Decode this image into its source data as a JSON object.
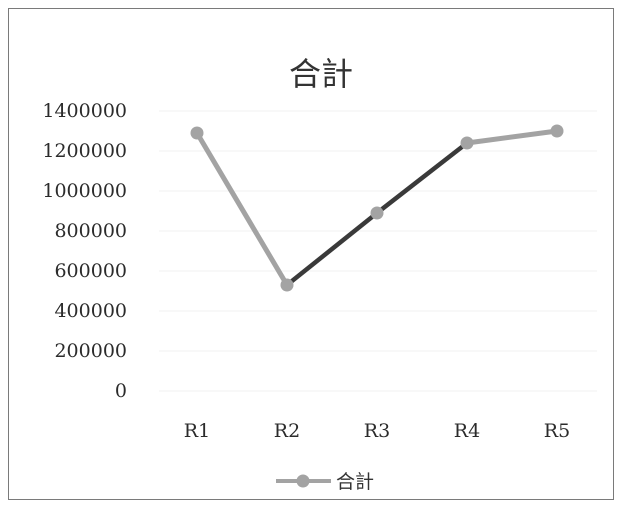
{
  "chart_data": {
    "type": "line",
    "title": "合計",
    "categories": [
      "R1",
      "R2",
      "R3",
      "R4",
      "R5"
    ],
    "series": [
      {
        "name": "合計",
        "values": [
          1290000,
          530000,
          890000,
          1240000,
          1300000
        ]
      }
    ],
    "yticks": [
      "0",
      "200000",
      "400000",
      "600000",
      "800000",
      "1000000",
      "1200000",
      "1400000"
    ],
    "ylim": [
      0,
      1400000
    ],
    "grid": true,
    "legend": "bottom",
    "colors": {
      "line": "#a3a3a3",
      "segment_highlight": "#3a3a3a",
      "marker": "#a3a3a3"
    }
  }
}
